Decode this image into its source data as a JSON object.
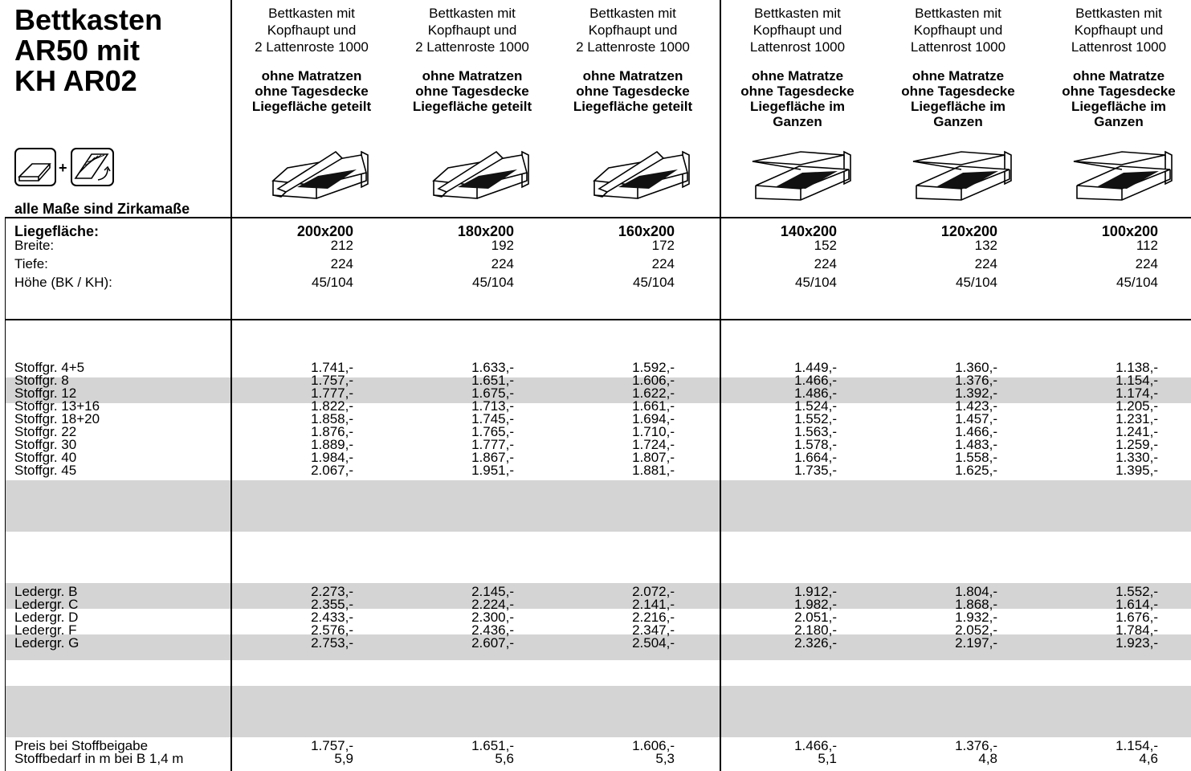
{
  "title": [
    "Bettkasten",
    "AR50 mit",
    "KH AR02"
  ],
  "note": "alle Maße sind Zirkamaße",
  "columns": [
    {
      "line1": "Bettkasten mit",
      "line2": "Kopfhaupt und",
      "line3": "2 Lattenroste 1000",
      "b1": "ohne Matratzen",
      "b2": "ohne Tagesdecke",
      "b3": "Liegefläche geteilt",
      "b4": "",
      "size": "200x200",
      "breite": "212",
      "tiefe": "224",
      "hoehe": "45/104"
    },
    {
      "line1": "Bettkasten mit",
      "line2": "Kopfhaupt und",
      "line3": "2 Lattenroste 1000",
      "b1": "ohne Matratzen",
      "b2": "ohne Tagesdecke",
      "b3": "Liegefläche geteilt",
      "b4": "",
      "size": "180x200",
      "breite": "192",
      "tiefe": "224",
      "hoehe": "45/104"
    },
    {
      "line1": "Bettkasten mit",
      "line2": "Kopfhaupt und",
      "line3": "2 Lattenroste 1000",
      "b1": "ohne Matratzen",
      "b2": "ohne Tagesdecke",
      "b3": "Liegefläche geteilt",
      "b4": "",
      "size": "160x200",
      "breite": "172",
      "tiefe": "224",
      "hoehe": "45/104"
    },
    {
      "line1": "Bettkasten mit",
      "line2": "Kopfhaupt und",
      "line3": "Lattenrost 1000",
      "b1": "ohne Matratze",
      "b2": "ohne Tagesdecke",
      "b3": "Liegefläche im",
      "b4": "Ganzen",
      "size": "140x200",
      "breite": "152",
      "tiefe": "224",
      "hoehe": "45/104"
    },
    {
      "line1": "Bettkasten mit",
      "line2": "Kopfhaupt und",
      "line3": "Lattenrost 1000",
      "b1": "ohne Matratze",
      "b2": "ohne Tagesdecke",
      "b3": "Liegefläche im",
      "b4": "Ganzen",
      "size": "120x200",
      "breite": "132",
      "tiefe": "224",
      "hoehe": "45/104"
    },
    {
      "line1": "Bettkasten mit",
      "line2": "Kopfhaupt und",
      "line3": "Lattenrost 1000",
      "b1": "ohne Matratze",
      "b2": "ohne Tagesdecke",
      "b3": "Liegefläche im",
      "b4": "Ganzen",
      "size": "100x200",
      "breite": "112",
      "tiefe": "224",
      "hoehe": "45/104"
    }
  ],
  "dim_labels": {
    "liegeflaeche": "Liegefläche:",
    "breite": "Breite:",
    "tiefe": "Tiefe:",
    "hoehe": "Höhe (BK / KH):"
  },
  "stoff_rows": [
    {
      "label": "Stoffgr. 4+5",
      "values": [
        "1.741,-",
        "1.633,-",
        "1.592,-",
        "1.449,-",
        "1.360,-",
        "1.138,-"
      ]
    },
    {
      "label": "Stoffgr. 8",
      "values": [
        "1.757,-",
        "1.651,-",
        "1.606,-",
        "1.466,-",
        "1.376,-",
        "1.154,-"
      ]
    },
    {
      "label": "Stoffgr. 12",
      "values": [
        "1.777,-",
        "1.675,-",
        "1.622,-",
        "1.486,-",
        "1.392,-",
        "1.174,-"
      ]
    },
    {
      "label": "Stoffgr. 13+16",
      "values": [
        "1.822,-",
        "1.713,-",
        "1.661,-",
        "1.524,-",
        "1.423,-",
        "1.205,-"
      ]
    },
    {
      "label": "Stoffgr. 18+20",
      "values": [
        "1.858,-",
        "1.745,-",
        "1.694,-",
        "1.552,-",
        "1.457,-",
        "1.231,-"
      ]
    },
    {
      "label": "Stoffgr. 22",
      "values": [
        "1.876,-",
        "1.765,-",
        "1.710,-",
        "1.563,-",
        "1.466,-",
        "1.241,-"
      ]
    },
    {
      "label": "Stoffgr. 30",
      "values": [
        "1.889,-",
        "1.777,-",
        "1.724,-",
        "1.578,-",
        "1.483,-",
        "1.259,-"
      ]
    },
    {
      "label": "Stoffgr. 40",
      "values": [
        "1.984,-",
        "1.867,-",
        "1.807,-",
        "1.664,-",
        "1.558,-",
        "1.330,-"
      ]
    },
    {
      "label": "Stoffgr. 45",
      "values": [
        "2.067,-",
        "1.951,-",
        "1.881,-",
        "1.735,-",
        "1.625,-",
        "1.395,-"
      ]
    }
  ],
  "leder_rows": [
    {
      "label": "Ledergr. B",
      "values": [
        "2.273,-",
        "2.145,-",
        "2.072,-",
        "1.912,-",
        "1.804,-",
        "1.552,-"
      ]
    },
    {
      "label": "Ledergr. C",
      "values": [
        "2.355,-",
        "2.224,-",
        "2.141,-",
        "1.982,-",
        "1.868,-",
        "1.614,-"
      ]
    },
    {
      "label": "Ledergr. D",
      "values": [
        "2.433,-",
        "2.300,-",
        "2.216,-",
        "2.051,-",
        "1.932,-",
        "1.676,-"
      ]
    },
    {
      "label": "Ledergr. F",
      "values": [
        "2.576,-",
        "2.436,-",
        "2.347,-",
        "2.180,-",
        "2.052,-",
        "1.784,-"
      ]
    },
    {
      "label": "Ledergr. G",
      "values": [
        "2.753,-",
        "2.607,-",
        "2.504,-",
        "2.326,-",
        "2.197,-",
        "1.923,-"
      ]
    }
  ],
  "footer_rows": [
    {
      "label": "Preis bei Stoffbeigabe",
      "values": [
        "1.757,-",
        "1.651,-",
        "1.606,-",
        "1.466,-",
        "1.376,-",
        "1.154,-"
      ]
    },
    {
      "label": "Stoffbedarf in m bei B 1,4 m",
      "values": [
        "5,9",
        "5,6",
        "5,3",
        "5,1",
        "4,8",
        "4,6"
      ]
    }
  ],
  "icons": [
    "bed-frame-icon",
    "lattenrost-icon",
    "bed-split-lift-icon",
    "bed-single-lift-icon"
  ]
}
